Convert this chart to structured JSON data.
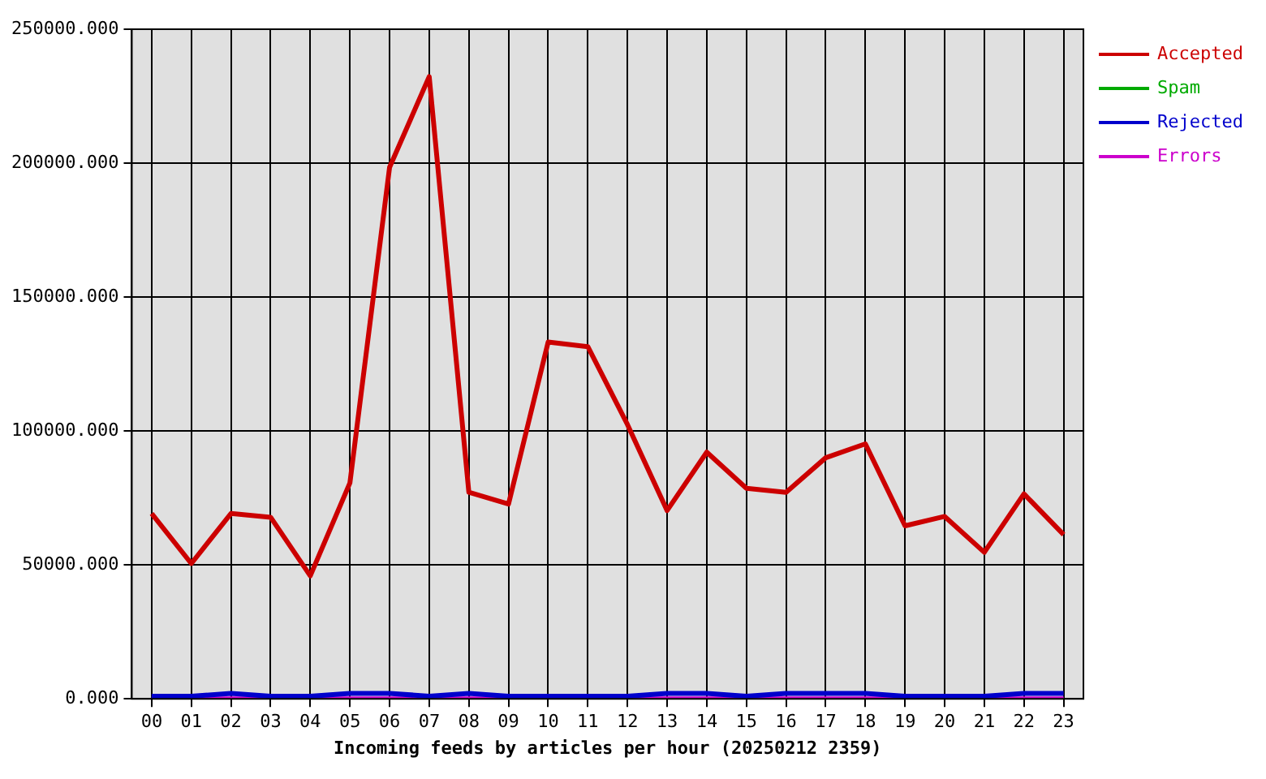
{
  "chart_data": {
    "type": "line",
    "xlabel": "Incoming feeds by articles per hour (20250212 2359)",
    "categories": [
      "00",
      "01",
      "02",
      "03",
      "04",
      "05",
      "06",
      "07",
      "08",
      "09",
      "10",
      "11",
      "12",
      "13",
      "14",
      "15",
      "16",
      "17",
      "18",
      "19",
      "20",
      "21",
      "22",
      "23"
    ],
    "series": [
      {
        "name": "Accepted",
        "color": "#cc0000",
        "values": [
          69200,
          50500,
          69200,
          67800,
          45900,
          80600,
          198400,
          232300,
          77100,
          72700,
          133200,
          131500,
          102400,
          70300,
          92100,
          78600,
          77100,
          90000,
          95200,
          64600,
          68100,
          54700,
          76500,
          61300
        ]
      },
      {
        "name": "Spam",
        "color": "#00aa00",
        "values": [
          null,
          null,
          null,
          null,
          null,
          null,
          null,
          null,
          null,
          null,
          null,
          null,
          null,
          null,
          null,
          null,
          null,
          null,
          null,
          null,
          null,
          null,
          null,
          null
        ]
      },
      {
        "name": "Rejected",
        "color": "#0000cc",
        "values": [
          1000,
          1000,
          2000,
          1000,
          1000,
          2000,
          2000,
          1000,
          2000,
          1000,
          1000,
          1000,
          1000,
          2000,
          2000,
          1000,
          2000,
          2000,
          2000,
          1000,
          1000,
          1000,
          2000,
          2000
        ]
      },
      {
        "name": "Errors",
        "color": "#cc00cc",
        "values": [
          0,
          0,
          0,
          0,
          0,
          0,
          0,
          0,
          0,
          0,
          0,
          0,
          0,
          0,
          0,
          0,
          0,
          0,
          0,
          0,
          0,
          0,
          0,
          0
        ]
      }
    ],
    "ylim": [
      0,
      250000
    ],
    "yticks": [
      {
        "value": 0,
        "label": "0.000"
      },
      {
        "value": 50000,
        "label": "50000.000"
      },
      {
        "value": 100000,
        "label": "100000.000"
      },
      {
        "value": 150000,
        "label": "150000.000"
      },
      {
        "value": 200000,
        "label": "200000.000"
      },
      {
        "value": 250000,
        "label": "250000.000"
      }
    ],
    "grid": true,
    "legend": "top right",
    "marker": "none",
    "line_style": "solid"
  }
}
